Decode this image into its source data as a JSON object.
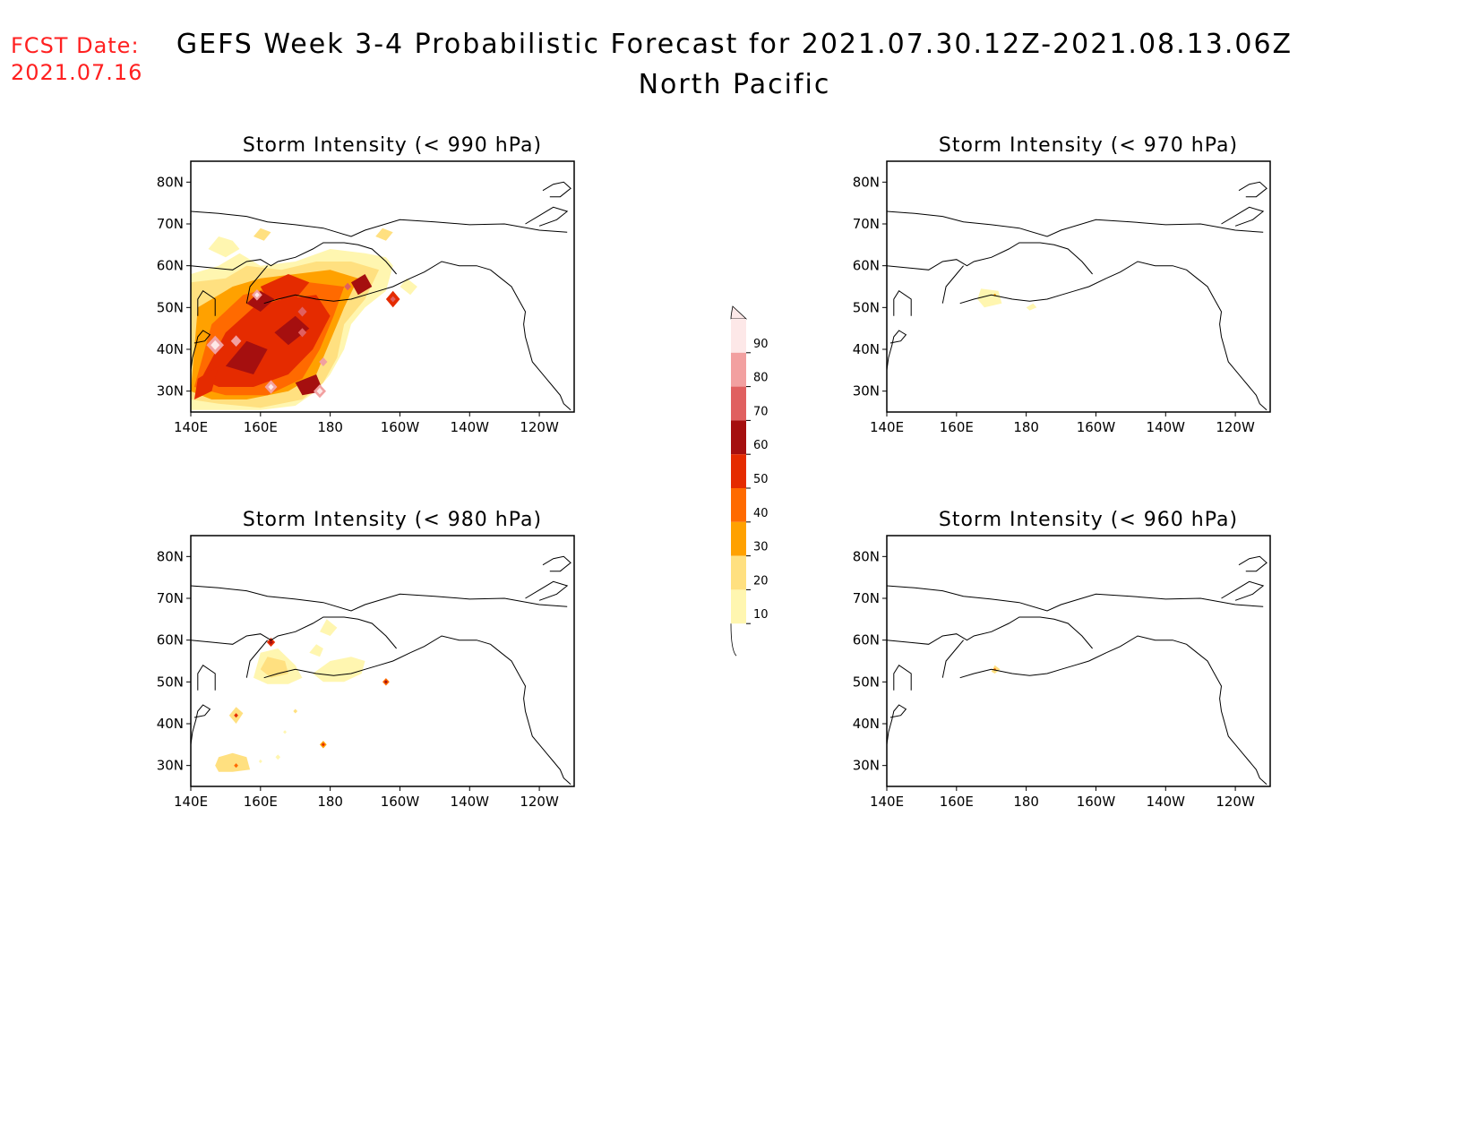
{
  "header": {
    "fcst_label": "FCST Date:",
    "fcst_date": "2021.07.16",
    "title": "GEFS Week 3-4 Probabilistic Forecast for 2021.07.30.12Z-2021.08.13.06Z",
    "subtitle": "North Pacific"
  },
  "axes": {
    "lat_ticks": [
      "80N",
      "70N",
      "60N",
      "50N",
      "40N",
      "30N"
    ],
    "lon_ticks": [
      "140E",
      "160E",
      "180",
      "160W",
      "140W",
      "120W"
    ]
  },
  "panels": {
    "p990": {
      "title": "Storm Intensity (< 990 hPa)",
      "coverage": "widespread"
    },
    "p970": {
      "title": "Storm Intensity (< 970 hPa)",
      "coverage": "minimal"
    },
    "p980": {
      "title": "Storm Intensity (< 980 hPa)",
      "coverage": "scattered"
    },
    "p960": {
      "title": "Storm Intensity (< 960 hPa)",
      "coverage": "trace"
    }
  },
  "colorbar": {
    "labels": [
      "90",
      "80",
      "70",
      "60",
      "50",
      "40",
      "30",
      "20",
      "10"
    ],
    "colors": [
      "#fde8e8",
      "#f2a0a0",
      "#e06060",
      "#a50f0f",
      "#e52b00",
      "#ff6a00",
      "#ffa100",
      "#ffe080",
      "#fff6b0"
    ]
  },
  "colors": {
    "fcst_text": "#ff2020"
  }
}
